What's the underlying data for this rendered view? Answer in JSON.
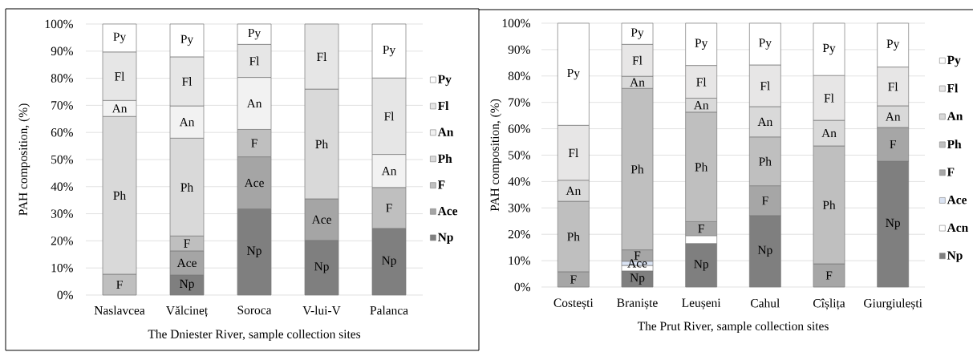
{
  "chart_data": [
    {
      "type": "bar",
      "stacked": true,
      "categories": [
        "Naslavcea",
        "Vălcineț",
        "Soroca",
        "V-lui-V",
        "Palanca"
      ],
      "xlabel": "The Dniester River, sample collection sites",
      "ylabel": "PAH composition, (%)",
      "ylim": [
        0,
        100
      ],
      "yticks": [
        {
          "value": 0,
          "label": "0%"
        },
        {
          "value": 10,
          "label": "10%"
        },
        {
          "value": 20,
          "label": "20%"
        },
        {
          "value": 30,
          "label": "30%"
        },
        {
          "value": 40,
          "label": "40%"
        },
        {
          "value": 50,
          "label": "50%"
        },
        {
          "value": 60,
          "label": "60%"
        },
        {
          "value": 70,
          "label": "70%"
        },
        {
          "value": 80,
          "label": "80%"
        },
        {
          "value": 90,
          "label": "90%"
        },
        {
          "value": 100,
          "label": "100%"
        }
      ],
      "grid": "y",
      "legend": "right",
      "series": [
        {
          "name": "Np",
          "color": "#7f7f7f",
          "values": [
            0,
            7.4,
            31.8,
            20.2,
            24.6
          ],
          "value_labels": [
            null,
            "Np",
            "Np",
            "Np",
            "Np"
          ]
        },
        {
          "name": "Ace",
          "color": "#a5a5a5",
          "values": [
            0,
            8.9,
            19.2,
            15.3,
            0
          ],
          "value_labels": [
            null,
            "Ace",
            "Ace",
            "Ace",
            null
          ]
        },
        {
          "name": "F",
          "color": "#bfbfbf",
          "values": [
            7.7,
            5.5,
            10.1,
            0,
            15.1
          ],
          "value_labels": [
            "F",
            "F",
            "F",
            null,
            "F"
          ]
        },
        {
          "name": "Ph",
          "color": "#d9d9d9",
          "values": [
            58.2,
            36.1,
            0,
            40.5,
            0
          ],
          "value_labels": [
            "Ph",
            "Ph",
            null,
            "Ph",
            null
          ]
        },
        {
          "name": "An",
          "color": "#f2f2f2",
          "values": [
            5.9,
            11.9,
            19.2,
            0,
            12.2
          ],
          "value_labels": [
            "An",
            "An",
            "An",
            null,
            "An"
          ]
        },
        {
          "name": "Fl",
          "color": "#e6e6e6",
          "values": [
            17.9,
            18.1,
            12.2,
            24.0,
            28.2
          ],
          "value_labels": [
            "Fl",
            "Fl",
            "Fl",
            "Fl",
            "Fl"
          ]
        },
        {
          "name": "Py",
          "color": "#ffffff",
          "values": [
            10.3,
            12.1,
            7.5,
            0,
            19.9
          ],
          "value_labels": [
            "Py",
            "Py",
            "Py",
            null,
            "Py"
          ]
        }
      ]
    },
    {
      "type": "bar",
      "stacked": true,
      "categories": [
        "Costești",
        "Braniște",
        "Leușeni",
        "Cahul",
        "Cîșlița",
        "Giurgiulești"
      ],
      "xlabel": "The Prut River, sample collection sites",
      "ylabel": "PAH composition, (%)",
      "ylim": [
        0,
        100
      ],
      "yticks": [
        {
          "value": 0,
          "label": "0%"
        },
        {
          "value": 10,
          "label": "10%"
        },
        {
          "value": 20,
          "label": "20%"
        },
        {
          "value": 30,
          "label": "30%"
        },
        {
          "value": 40,
          "label": "40%"
        },
        {
          "value": 50,
          "label": "50%"
        },
        {
          "value": 60,
          "label": "60%"
        },
        {
          "value": 70,
          "label": "70%"
        },
        {
          "value": 80,
          "label": "80%"
        },
        {
          "value": 90,
          "label": "90%"
        },
        {
          "value": 100,
          "label": "100%"
        }
      ],
      "grid": "y",
      "legend": "right",
      "series": [
        {
          "name": "Np",
          "color": "#7f7f7f",
          "values": [
            0,
            6.1,
            16.5,
            27.1,
            0,
            47.7
          ],
          "value_labels": [
            null,
            "Np",
            "Np",
            "Np",
            null,
            "Np"
          ]
        },
        {
          "name": "Acn",
          "color": "#ffffff",
          "values": [
            0,
            2.1,
            3.0,
            0,
            0,
            0
          ],
          "value_labels": [
            null,
            null,
            null,
            null,
            null,
            null
          ]
        },
        {
          "name": "Ace",
          "color": "#dae3f3",
          "values": [
            0,
            1.6,
            0,
            0,
            0,
            0
          ],
          "value_labels": [
            null,
            "Ace",
            null,
            null,
            null,
            null
          ]
        },
        {
          "name": "F",
          "color": "#a6a6a6",
          "values": [
            5.8,
            4.3,
            5.3,
            11.3,
            8.8,
            12.8
          ],
          "value_labels": [
            "F",
            "F",
            "F",
            "F",
            "F",
            "F"
          ]
        },
        {
          "name": "Ph",
          "color": "#bfbfbf",
          "values": [
            26.7,
            61.2,
            41.5,
            18.5,
            44.7,
            0
          ],
          "value_labels": [
            "Ph",
            "Ph",
            "Ph",
            "Ph",
            "Ph",
            null
          ]
        },
        {
          "name": "An",
          "color": "#d9d9d9",
          "values": [
            8.0,
            4.6,
            5.3,
            11.5,
            9.7,
            8.2
          ],
          "value_labels": [
            "An",
            "An",
            "An",
            "An",
            "An",
            "An"
          ]
        },
        {
          "name": "Fl",
          "color": "#e7e6e6",
          "values": [
            20.8,
            12.1,
            12.4,
            15.8,
            17.0,
            14.7
          ],
          "value_labels": [
            "Fl",
            "Fl",
            "Fl",
            "Fl",
            "Fl",
            "Fl"
          ]
        },
        {
          "name": "Py",
          "color": "#ffffff",
          "values": [
            38.7,
            8.0,
            16.0,
            15.8,
            19.8,
            16.6
          ],
          "value_labels": [
            "Py",
            "Py",
            "Py",
            "Py",
            "Py",
            "Py"
          ]
        }
      ]
    }
  ]
}
